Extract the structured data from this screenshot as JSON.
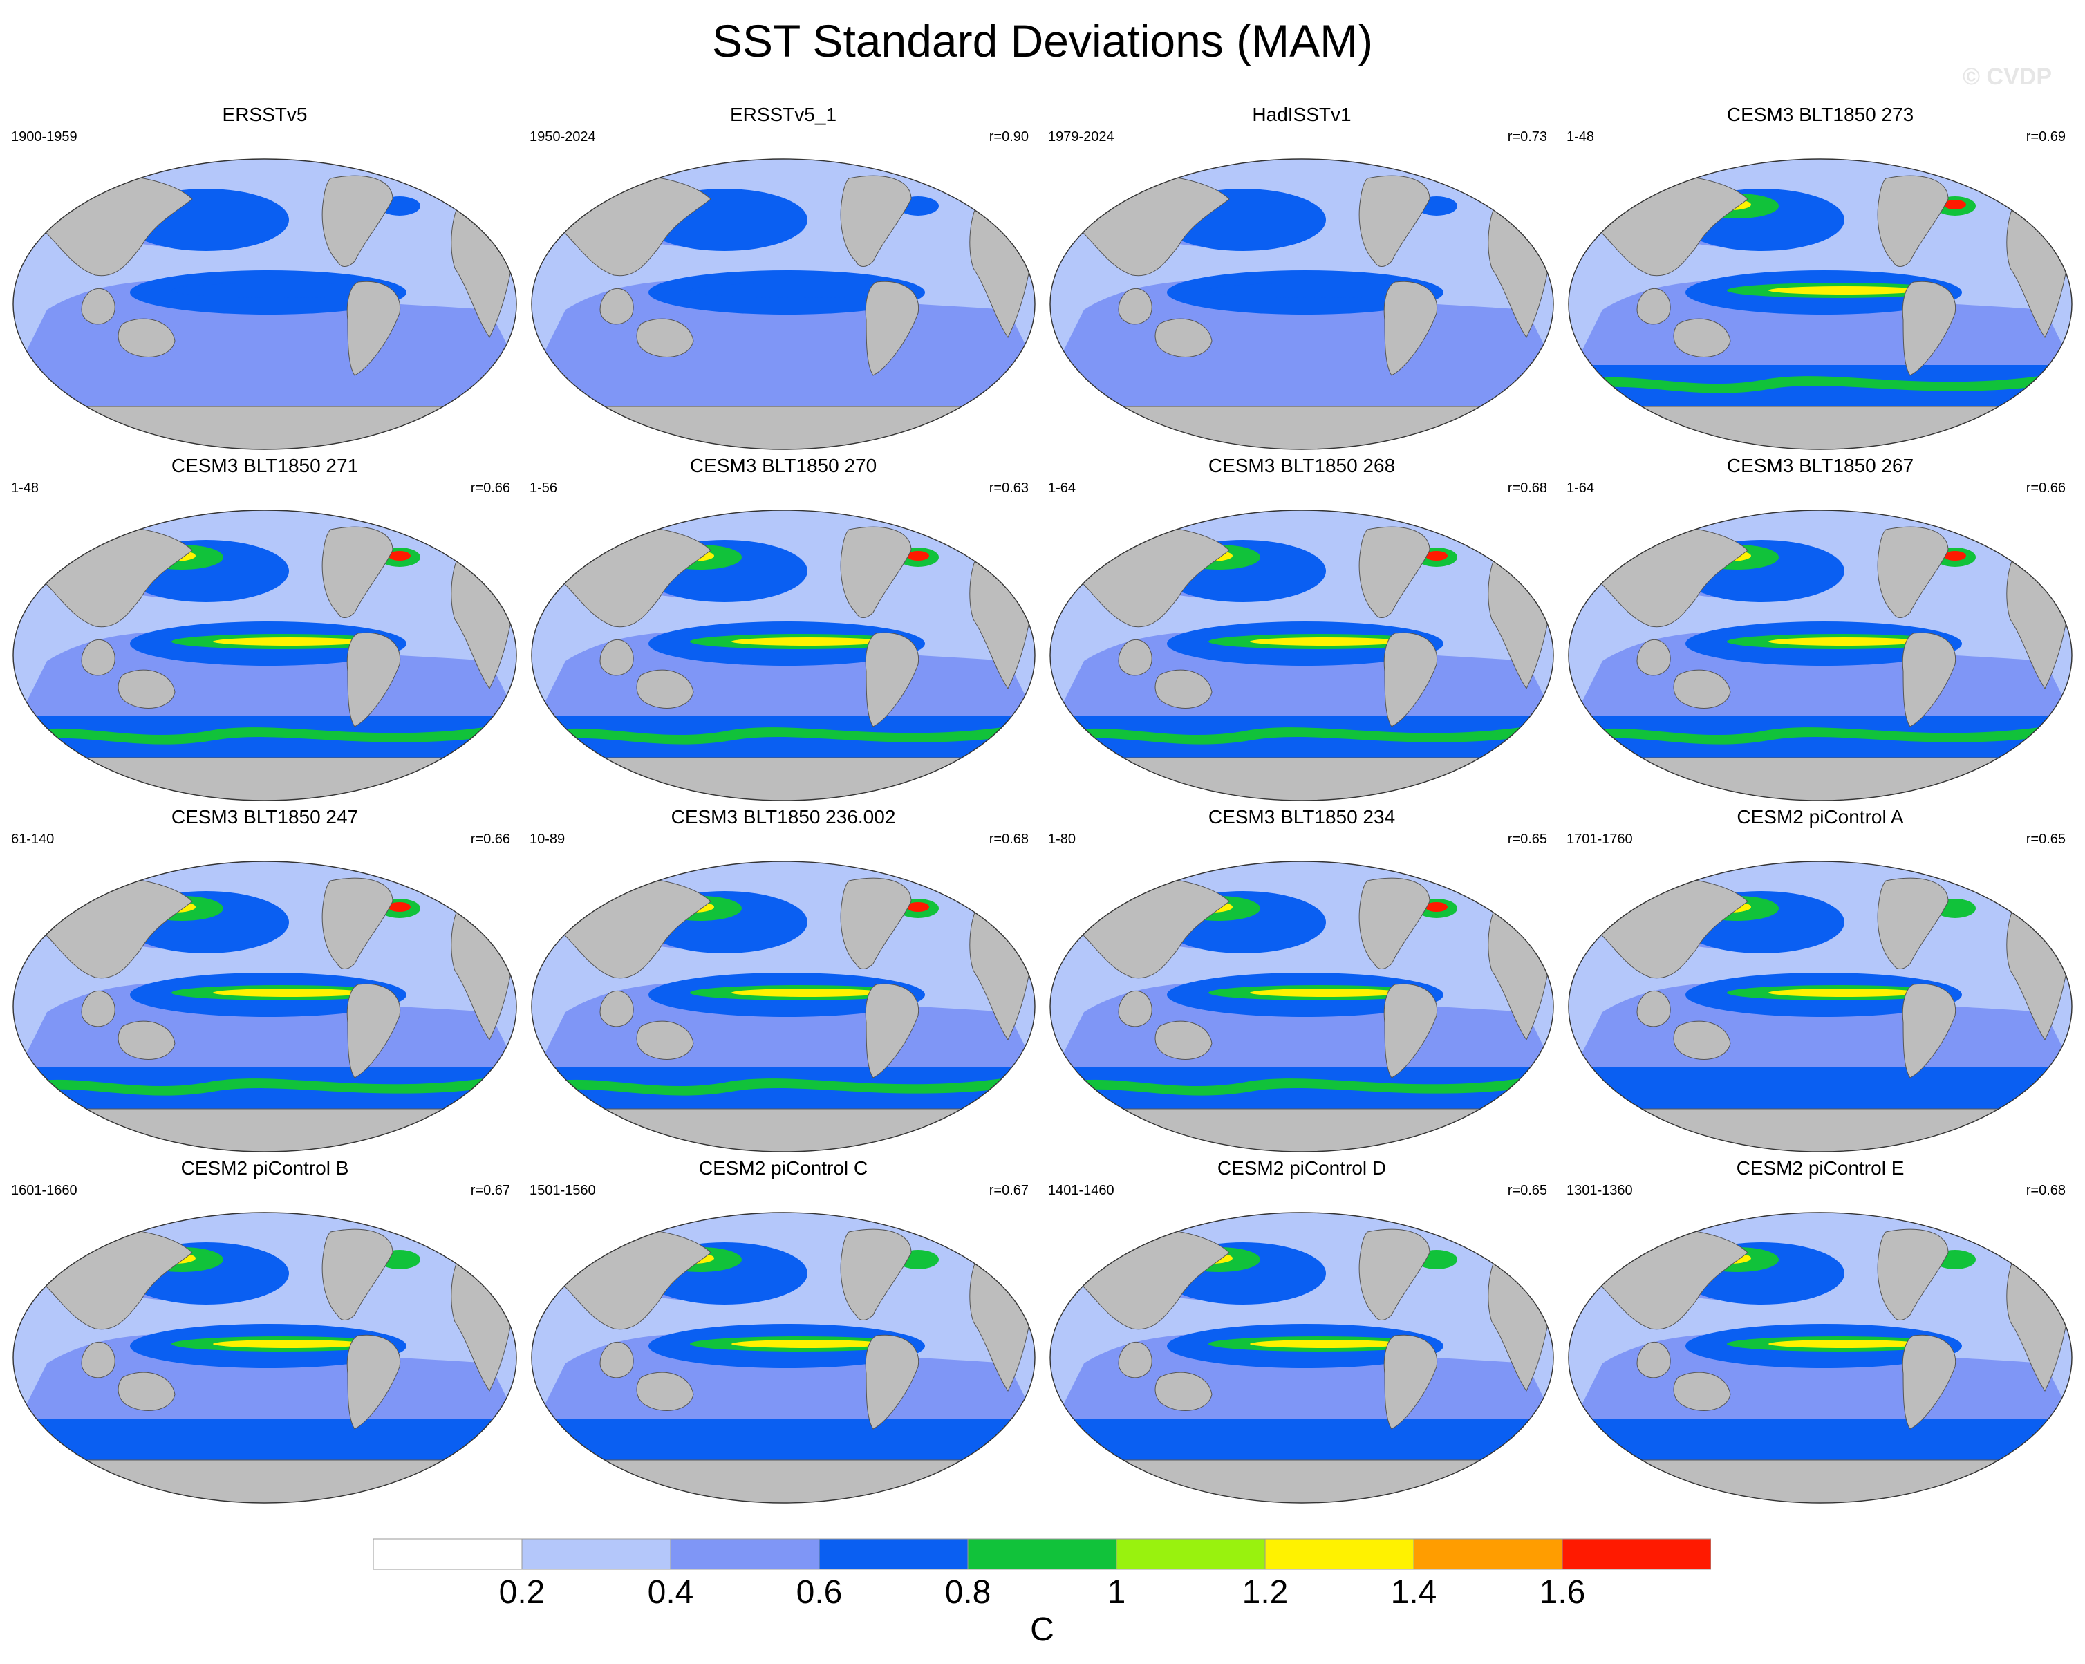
{
  "title": "SST Standard Deviations (MAM)",
  "watermark": "© CVDP",
  "panels": [
    {
      "title": "ERSSTv5",
      "period": "1900-1959",
      "r": ""
    },
    {
      "title": "ERSSTv5_1",
      "period": "1950-2024",
      "r": "r=0.90"
    },
    {
      "title": "HadISSTv1",
      "period": "1979-2024",
      "r": "r=0.73"
    },
    {
      "title": "CESM3 BLT1850 273",
      "period": "1-48",
      "r": "r=0.69"
    },
    {
      "title": "CESM3 BLT1850 271",
      "period": "1-48",
      "r": "r=0.66"
    },
    {
      "title": "CESM3 BLT1850 270",
      "period": "1-56",
      "r": "r=0.63"
    },
    {
      "title": "CESM3 BLT1850 268",
      "period": "1-64",
      "r": "r=0.68"
    },
    {
      "title": "CESM3 BLT1850 267",
      "period": "1-64",
      "r": "r=0.66"
    },
    {
      "title": "CESM3 BLT1850 247",
      "period": "61-140",
      "r": "r=0.66"
    },
    {
      "title": "CESM3 BLT1850 236.002",
      "period": "10-89",
      "r": "r=0.68"
    },
    {
      "title": "CESM3 BLT1850 234",
      "period": "1-80",
      "r": "r=0.65"
    },
    {
      "title": "CESM2 piControl A",
      "period": "1701-1760",
      "r": "r=0.65"
    },
    {
      "title": "CESM2 piControl B",
      "period": "1601-1660",
      "r": "r=0.67"
    },
    {
      "title": "CESM2 piControl C",
      "period": "1501-1560",
      "r": "r=0.67"
    },
    {
      "title": "CESM2 piControl D",
      "period": "1401-1460",
      "r": "r=0.65"
    },
    {
      "title": "CESM2 piControl E",
      "period": "1301-1360",
      "r": "r=0.68"
    }
  ],
  "colorbar": {
    "unit": "C",
    "levels": [
      "0.2",
      "0.4",
      "0.6",
      "0.8",
      "1",
      "1.2",
      "1.4",
      "1.6"
    ],
    "colors": [
      "#ffffff",
      "#b4c7fa",
      "#7f96f6",
      "#0a5ff2",
      "#11c23a",
      "#99f20e",
      "#fff200",
      "#ff9d00",
      "#ff1a00"
    ]
  },
  "colors": {
    "land": "#bdbdbd",
    "ocean_low": "#b4c7fa",
    "ocean_mid": "#7f96f6",
    "ocean_high": "#0a5ff2",
    "green": "#11c23a",
    "yellow": "#fff200",
    "red": "#ff1a00"
  }
}
